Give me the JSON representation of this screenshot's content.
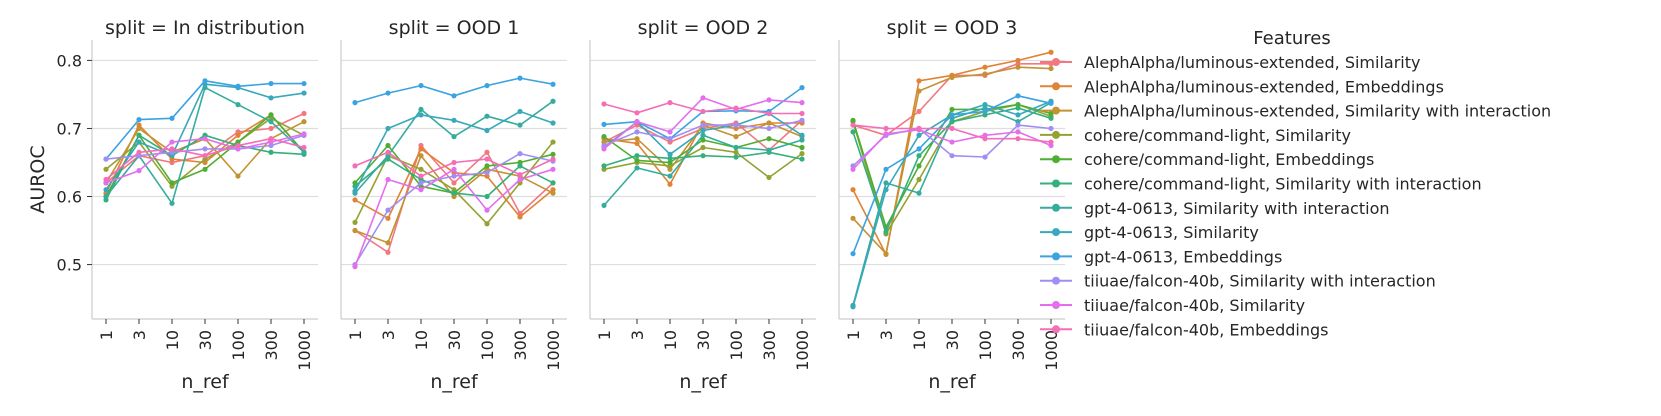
{
  "chart_data": {
    "type": "line",
    "ylabel": "AUROC",
    "xlabel": "n_ref",
    "x_categories": [
      "1",
      "3",
      "10",
      "30",
      "100",
      "300",
      "1000"
    ],
    "ylim": [
      0.42,
      0.83
    ],
    "y_ticks": [
      "0.5",
      "0.6",
      "0.7",
      "0.8"
    ],
    "grid": "y",
    "legend": {
      "title": "Features",
      "placement": "right"
    },
    "series_meta": [
      {
        "name": "AlephAlpha/luminous-extended, Similarity",
        "color": "#f37681"
      },
      {
        "name": "AlephAlpha/luminous-extended, Embeddings",
        "color": "#e08334"
      },
      {
        "name": "AlephAlpha/luminous-extended, Similarity with interaction",
        "color": "#c39331"
      },
      {
        "name": "cohere/command-light, Similarity",
        "color": "#95a232"
      },
      {
        "name": "cohere/command-light, Embeddings",
        "color": "#4fae31"
      },
      {
        "name": "cohere/command-light, Similarity with interaction",
        "color": "#33b07c"
      },
      {
        "name": "gpt-4-0613, Similarity with interaction",
        "color": "#35ac9e"
      },
      {
        "name": "gpt-4-0613, Similarity",
        "color": "#38a8bb"
      },
      {
        "name": "gpt-4-0613, Embeddings",
        "color": "#3ba3e1"
      },
      {
        "name": "tiiuae/falcon-40b, Similarity with interaction",
        "color": "#a28ef3"
      },
      {
        "name": "tiiuae/falcon-40b, Similarity",
        "color": "#e36fef"
      },
      {
        "name": "tiiuae/falcon-40b, Embeddings",
        "color": "#f56db6"
      }
    ],
    "panels": [
      {
        "title": "split = In distribution",
        "series": [
          [
            0.62,
            0.66,
            0.65,
            0.66,
            0.695,
            0.7,
            0.722
          ],
          [
            0.605,
            0.705,
            0.655,
            0.65,
            0.69,
            0.72,
            0.665
          ],
          [
            0.62,
            0.7,
            0.665,
            0.685,
            0.63,
            0.685,
            0.71
          ],
          [
            0.64,
            0.68,
            0.615,
            0.655,
            0.68,
            0.715,
            0.69
          ],
          [
            0.6,
            0.69,
            0.62,
            0.64,
            0.68,
            0.72,
            0.665
          ],
          [
            0.595,
            0.69,
            0.66,
            0.69,
            0.675,
            0.665,
            0.662
          ],
          [
            0.6,
            0.66,
            0.59,
            0.76,
            0.735,
            0.71,
            0.665
          ],
          [
            0.61,
            0.68,
            0.66,
            0.765,
            0.76,
            0.745,
            0.752
          ],
          [
            0.655,
            0.713,
            0.715,
            0.77,
            0.762,
            0.766,
            0.766
          ],
          [
            0.655,
            0.66,
            0.665,
            0.67,
            0.67,
            0.675,
            0.69
          ],
          [
            0.62,
            0.638,
            0.68,
            0.685,
            0.67,
            0.68,
            0.692
          ],
          [
            0.625,
            0.665,
            0.67,
            0.66,
            0.675,
            0.685,
            0.672
          ]
        ]
      },
      {
        "title": "split = OOD 1",
        "series": [
          [
            0.55,
            0.518,
            0.675,
            0.62,
            0.665,
            0.575,
            0.62
          ],
          [
            0.595,
            0.568,
            0.67,
            0.635,
            0.63,
            0.57,
            0.61
          ],
          [
            0.55,
            0.532,
            0.66,
            0.6,
            0.64,
            0.63,
            0.605
          ],
          [
            0.562,
            0.66,
            0.64,
            0.61,
            0.56,
            0.62,
            0.68
          ],
          [
            0.62,
            0.675,
            0.615,
            0.605,
            0.645,
            0.65,
            0.662
          ],
          [
            0.615,
            0.655,
            0.625,
            0.605,
            0.6,
            0.645,
            0.62
          ],
          [
            0.605,
            0.66,
            0.728,
            0.688,
            0.718,
            0.705,
            0.74
          ],
          [
            0.608,
            0.7,
            0.72,
            0.712,
            0.697,
            0.725,
            0.708
          ],
          [
            0.738,
            0.752,
            0.763,
            0.748,
            0.763,
            0.774,
            0.765
          ],
          [
            0.5,
            0.58,
            0.62,
            0.63,
            0.635,
            0.663,
            0.652
          ],
          [
            0.497,
            0.625,
            0.61,
            0.64,
            0.58,
            0.625,
            0.64
          ],
          [
            0.645,
            0.665,
            0.63,
            0.65,
            0.655,
            0.632,
            0.655
          ]
        ]
      },
      {
        "title": "split = OOD 2",
        "series": [
          [
            0.68,
            0.705,
            0.68,
            0.7,
            0.708,
            0.668,
            0.712
          ],
          [
            0.685,
            0.678,
            0.618,
            0.708,
            0.7,
            0.708,
            0.708
          ],
          [
            0.68,
            0.685,
            0.64,
            0.705,
            0.688,
            0.708,
            0.688
          ],
          [
            0.64,
            0.65,
            0.645,
            0.672,
            0.665,
            0.628,
            0.663
          ],
          [
            0.688,
            0.653,
            0.65,
            0.683,
            0.672,
            0.685,
            0.672
          ],
          [
            0.645,
            0.66,
            0.656,
            0.66,
            0.658,
            0.665,
            0.655
          ],
          [
            0.587,
            0.642,
            0.63,
            0.69,
            0.672,
            0.668,
            0.683
          ],
          [
            0.672,
            0.71,
            0.662,
            0.697,
            0.705,
            0.722,
            0.69
          ],
          [
            0.706,
            0.71,
            0.685,
            0.725,
            0.726,
            0.725,
            0.76
          ],
          [
            0.675,
            0.695,
            0.685,
            0.705,
            0.705,
            0.7,
            0.712
          ],
          [
            0.67,
            0.71,
            0.695,
            0.745,
            0.728,
            0.742,
            0.738
          ],
          [
            0.736,
            0.723,
            0.738,
            0.725,
            0.73,
            0.722,
            0.722
          ]
        ]
      },
      {
        "title": "split = OOD 3",
        "series": [
          [
            0.705,
            0.69,
            0.725,
            0.778,
            0.778,
            0.795,
            0.795
          ],
          [
            0.61,
            0.515,
            0.77,
            0.778,
            0.79,
            0.8,
            0.812
          ],
          [
            0.568,
            0.516,
            0.755,
            0.775,
            0.78,
            0.79,
            0.788
          ],
          [
            0.71,
            0.545,
            0.625,
            0.71,
            0.725,
            0.735,
            0.718
          ],
          [
            0.712,
            0.555,
            0.645,
            0.728,
            0.728,
            0.735,
            0.722
          ],
          [
            0.695,
            0.548,
            0.66,
            0.71,
            0.72,
            0.73,
            0.715
          ],
          [
            0.44,
            0.62,
            0.605,
            0.715,
            0.73,
            0.71,
            0.738
          ],
          [
            0.438,
            0.61,
            0.69,
            0.72,
            0.735,
            0.72,
            0.74
          ],
          [
            0.516,
            0.64,
            0.67,
            0.72,
            0.725,
            0.748,
            0.737
          ],
          [
            0.645,
            0.69,
            0.7,
            0.66,
            0.658,
            0.705,
            0.7
          ],
          [
            0.64,
            0.692,
            0.698,
            0.68,
            0.69,
            0.695,
            0.675
          ],
          [
            0.705,
            0.7,
            0.7,
            0.7,
            0.685,
            0.685,
            0.68
          ]
        ]
      }
    ]
  }
}
